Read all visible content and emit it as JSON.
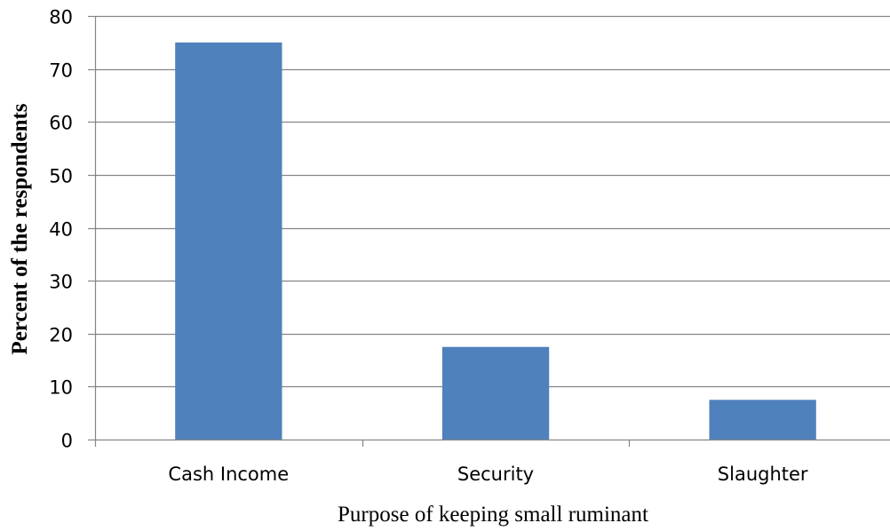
{
  "chart_data": {
    "type": "bar",
    "title": "",
    "categories": [
      "Cash Income",
      "Security",
      "Slaughter"
    ],
    "values": [
      75,
      17.5,
      7.5
    ],
    "xlabel": "Purpose of keeping small ruminant",
    "ylabel": "Percent of the respondents",
    "ylim": [
      0,
      80
    ],
    "yticks": [
      0,
      10,
      20,
      30,
      40,
      50,
      60,
      70,
      80
    ],
    "grid": true,
    "legend": "none",
    "colors": {
      "bar": "#4f81bd",
      "grid": "#868686",
      "axis": "#868686"
    }
  }
}
